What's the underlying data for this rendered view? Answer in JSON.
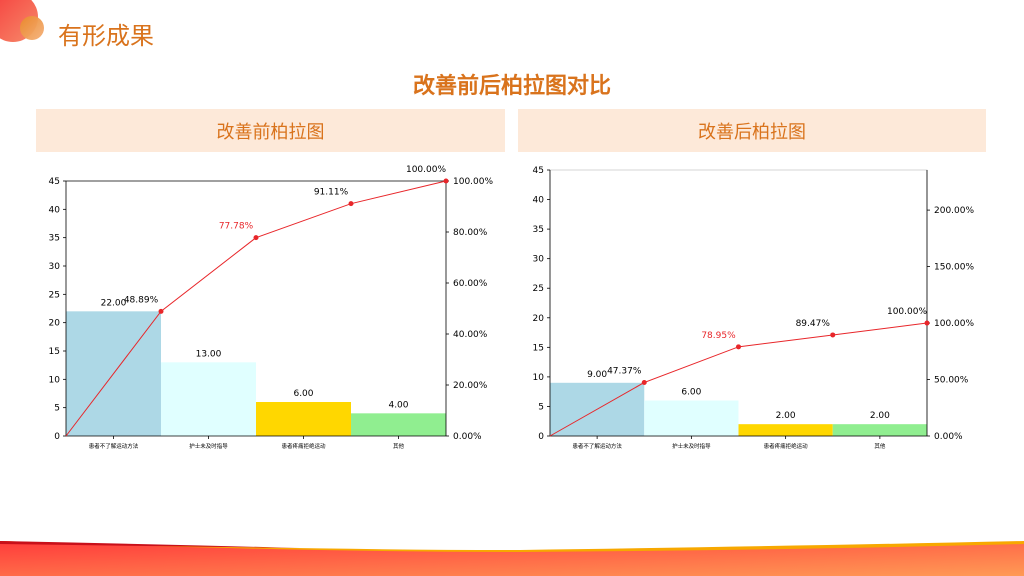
{
  "header": {
    "title": "有形成果",
    "subtitle": "改善前后柏拉图对比"
  },
  "colors": {
    "accent": "#d9731c",
    "panel": "#fde9d9",
    "line": "#e8262a",
    "bars": [
      "#add8e6",
      "#e0ffff",
      "#ffd700",
      "#90ee90"
    ]
  },
  "chart_data": [
    {
      "type": "bar",
      "title": "改善前柏拉图",
      "categories": [
        "患者不了解运动方法",
        "护士未及时指导",
        "患者疼痛拒绝运动",
        "其他"
      ],
      "values": [
        22,
        13,
        6,
        4
      ],
      "value_labels": [
        "22.00",
        "13.00",
        "6.00",
        "4.00"
      ],
      "cumulative_pct": [
        48.89,
        77.78,
        91.11,
        100
      ],
      "cumulative_labels": [
        "48.89%",
        "77.78%",
        "91.11%",
        "100.00%"
      ],
      "highlight_index": 1,
      "ylim": [
        0,
        45
      ],
      "yticks": [
        "0",
        "5",
        "10",
        "15",
        "20",
        "25",
        "30",
        "35",
        "40",
        "45"
      ],
      "y2lim": [
        0,
        100
      ],
      "y2ticks": [
        "0.00%",
        "20.00%",
        "40.00%",
        "60.00%",
        "80.00%",
        "100.00%"
      ]
    },
    {
      "type": "bar",
      "title": "改善后柏拉图",
      "categories": [
        "患者不了解运动方法",
        "护士未及时指导",
        "患者疼痛拒绝运动",
        "其他"
      ],
      "values": [
        9,
        6,
        2,
        2
      ],
      "value_labels": [
        "9.00",
        "6.00",
        "2.00",
        "2.00"
      ],
      "cumulative_pct": [
        47.37,
        78.95,
        89.47,
        100
      ],
      "cumulative_labels": [
        "47.37%",
        "78.95%",
        "89.47%",
        "100.00%"
      ],
      "highlight_index": 1,
      "ylim": [
        0,
        45
      ],
      "yticks": [
        "0",
        "5",
        "10",
        "15",
        "20",
        "25",
        "30",
        "35",
        "40",
        "45"
      ],
      "y2lim": [
        0,
        235.5
      ],
      "y2ticks": [
        "0.00%",
        "50.00%",
        "100.00%",
        "150.00%",
        "200.00%"
      ]
    }
  ]
}
